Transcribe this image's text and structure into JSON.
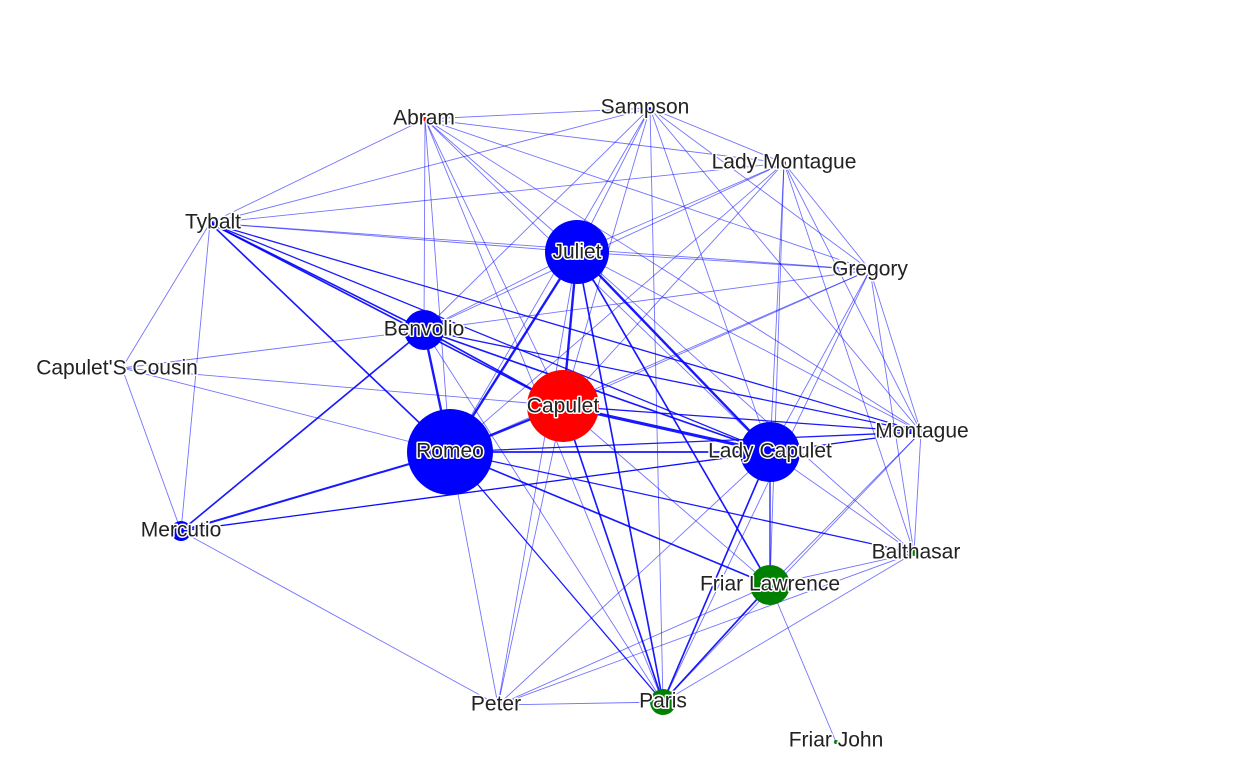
{
  "graph": {
    "colors": {
      "edge": "#0000ff",
      "blue": "#0000ff",
      "red": "#ff0000",
      "green": "#008000",
      "lightgreen": "#b8ddb8"
    },
    "nodes": [
      {
        "id": "abram",
        "label": "Abram",
        "color": "red",
        "size": 2
      },
      {
        "id": "sampson",
        "label": "Sampson",
        "color": "blue",
        "size": 1
      },
      {
        "id": "lady-montague",
        "label": "Lady Montague",
        "color": "red",
        "size": 2
      },
      {
        "id": "tybalt",
        "label": "Tybalt",
        "color": "blue",
        "size": 3
      },
      {
        "id": "juliet",
        "label": "Juliet",
        "color": "blue",
        "size": 32
      },
      {
        "id": "gregory",
        "label": "Gregory",
        "color": "blue",
        "size": 1
      },
      {
        "id": "benvolio",
        "label": "Benvolio",
        "color": "blue",
        "size": 20
      },
      {
        "id": "capulets-cousin",
        "label": "Capulet'S Cousin",
        "color": "blue",
        "size": 2
      },
      {
        "id": "capulet",
        "label": "Capulet",
        "color": "red",
        "size": 36
      },
      {
        "id": "romeo",
        "label": "Romeo",
        "color": "blue",
        "size": 43
      },
      {
        "id": "montague",
        "label": "Montague",
        "color": "lightgreen",
        "size": 6
      },
      {
        "id": "lady-capulet",
        "label": "Lady Capulet",
        "color": "blue",
        "size": 30
      },
      {
        "id": "mercutio",
        "label": "Mercutio",
        "color": "blue",
        "size": 10
      },
      {
        "id": "balthasar",
        "label": "Balthasar",
        "color": "green",
        "size": 3
      },
      {
        "id": "friar-lawrence",
        "label": "Friar Lawrence",
        "color": "green",
        "size": 20
      },
      {
        "id": "peter",
        "label": "Peter",
        "color": "blue",
        "size": 1
      },
      {
        "id": "paris",
        "label": "Paris",
        "color": "green",
        "size": 13
      },
      {
        "id": "friar-john",
        "label": "Friar John",
        "color": "green",
        "size": 2
      }
    ],
    "edges": [
      {
        "source": "capulet",
        "target": "lady-capulet",
        "weight": 4
      },
      {
        "source": "capulet",
        "target": "romeo",
        "weight": 3
      },
      {
        "source": "capulet",
        "target": "juliet",
        "weight": 3
      },
      {
        "source": "capulet",
        "target": "benvolio",
        "weight": 2
      },
      {
        "source": "capulet",
        "target": "tybalt",
        "weight": 2
      },
      {
        "source": "capulet",
        "target": "paris",
        "weight": 2
      },
      {
        "source": "capulet",
        "target": "montague",
        "weight": 1.5
      },
      {
        "source": "capulet",
        "target": "sampson",
        "weight": 1
      },
      {
        "source": "capulet",
        "target": "gregory",
        "weight": 1
      },
      {
        "source": "capulet",
        "target": "lady-montague",
        "weight": 1
      },
      {
        "source": "capulet",
        "target": "peter",
        "weight": 1
      },
      {
        "source": "capulet",
        "target": "abram",
        "weight": 1
      },
      {
        "source": "capulet",
        "target": "capulets-cousin",
        "weight": 1
      },
      {
        "source": "capulet",
        "target": "friar-lawrence",
        "weight": 1
      },
      {
        "source": "romeo",
        "target": "juliet",
        "weight": 3
      },
      {
        "source": "romeo",
        "target": "benvolio",
        "weight": 3
      },
      {
        "source": "romeo",
        "target": "mercutio",
        "weight": 2.5
      },
      {
        "source": "romeo",
        "target": "tybalt",
        "weight": 2
      },
      {
        "source": "romeo",
        "target": "lady-capulet",
        "weight": 2
      },
      {
        "source": "romeo",
        "target": "friar-lawrence",
        "weight": 2
      },
      {
        "source": "romeo",
        "target": "paris",
        "weight": 1.5
      },
      {
        "source": "romeo",
        "target": "balthasar",
        "weight": 1.5
      },
      {
        "source": "romeo",
        "target": "montague",
        "weight": 1.5
      },
      {
        "source": "romeo",
        "target": "peter",
        "weight": 1
      },
      {
        "source": "romeo",
        "target": "abram",
        "weight": 1
      },
      {
        "source": "romeo",
        "target": "sampson",
        "weight": 1
      },
      {
        "source": "romeo",
        "target": "gregory",
        "weight": 1
      },
      {
        "source": "romeo",
        "target": "capulets-cousin",
        "weight": 1
      },
      {
        "source": "romeo",
        "target": "lady-montague",
        "weight": 1
      },
      {
        "source": "juliet",
        "target": "lady-capulet",
        "weight": 3
      },
      {
        "source": "juliet",
        "target": "paris",
        "weight": 2
      },
      {
        "source": "juliet",
        "target": "friar-lawrence",
        "weight": 2
      },
      {
        "source": "juliet",
        "target": "benvolio",
        "weight": 1
      },
      {
        "source": "juliet",
        "target": "tybalt",
        "weight": 1
      },
      {
        "source": "juliet",
        "target": "sampson",
        "weight": 1
      },
      {
        "source": "juliet",
        "target": "gregory",
        "weight": 1
      },
      {
        "source": "juliet",
        "target": "peter",
        "weight": 1
      },
      {
        "source": "juliet",
        "target": "montague",
        "weight": 1
      },
      {
        "source": "juliet",
        "target": "abram",
        "weight": 1
      },
      {
        "source": "juliet",
        "target": "lady-montague",
        "weight": 1
      },
      {
        "source": "juliet",
        "target": "balthasar",
        "weight": 1
      },
      {
        "source": "lady-capulet",
        "target": "benvolio",
        "weight": 2
      },
      {
        "source": "lady-capulet",
        "target": "tybalt",
        "weight": 1.5
      },
      {
        "source": "lady-capulet",
        "target": "montague",
        "weight": 1.5
      },
      {
        "source": "lady-capulet",
        "target": "paris",
        "weight": 2
      },
      {
        "source": "lady-capulet",
        "target": "friar-lawrence",
        "weight": 1.5
      },
      {
        "source": "lady-capulet",
        "target": "mercutio",
        "weight": 1.5
      },
      {
        "source": "lady-capulet",
        "target": "sampson",
        "weight": 1
      },
      {
        "source": "lady-capulet",
        "target": "lady-montague",
        "weight": 1
      },
      {
        "source": "lady-capulet",
        "target": "abram",
        "weight": 1
      },
      {
        "source": "lady-capulet",
        "target": "gregory",
        "weight": 1
      },
      {
        "source": "lady-capulet",
        "target": "balthasar",
        "weight": 1
      },
      {
        "source": "lady-capulet",
        "target": "peter",
        "weight": 1
      },
      {
        "source": "benvolio",
        "target": "tybalt",
        "weight": 2
      },
      {
        "source": "benvolio",
        "target": "mercutio",
        "weight": 2
      },
      {
        "source": "benvolio",
        "target": "montague",
        "weight": 1.5
      },
      {
        "source": "benvolio",
        "target": "abram",
        "weight": 1
      },
      {
        "source": "benvolio",
        "target": "sampson",
        "weight": 1
      },
      {
        "source": "benvolio",
        "target": "gregory",
        "weight": 1
      },
      {
        "source": "benvolio",
        "target": "lady-montague",
        "weight": 1
      },
      {
        "source": "benvolio",
        "target": "capulets-cousin",
        "weight": 1
      },
      {
        "source": "benvolio",
        "target": "paris",
        "weight": 1
      },
      {
        "source": "tybalt",
        "target": "montague",
        "weight": 1.5
      },
      {
        "source": "tybalt",
        "target": "abram",
        "weight": 1
      },
      {
        "source": "tybalt",
        "target": "sampson",
        "weight": 1
      },
      {
        "source": "tybalt",
        "target": "lady-montague",
        "weight": 1
      },
      {
        "source": "tybalt",
        "target": "gregory",
        "weight": 1
      },
      {
        "source": "tybalt",
        "target": "capulets-cousin",
        "weight": 1
      },
      {
        "source": "tybalt",
        "target": "mercutio",
        "weight": 1
      },
      {
        "source": "friar-lawrence",
        "target": "paris",
        "weight": 2
      },
      {
        "source": "friar-lawrence",
        "target": "montague",
        "weight": 1
      },
      {
        "source": "friar-lawrence",
        "target": "balthasar",
        "weight": 1
      },
      {
        "source": "friar-lawrence",
        "target": "friar-john",
        "weight": 1
      },
      {
        "source": "friar-lawrence",
        "target": "peter",
        "weight": 1
      },
      {
        "source": "friar-lawrence",
        "target": "lady-montague",
        "weight": 1
      },
      {
        "source": "paris",
        "target": "montague",
        "weight": 1
      },
      {
        "source": "paris",
        "target": "peter",
        "weight": 1
      },
      {
        "source": "paris",
        "target": "balthasar",
        "weight": 1
      },
      {
        "source": "paris",
        "target": "sampson",
        "weight": 1
      },
      {
        "source": "paris",
        "target": "gregory",
        "weight": 1
      },
      {
        "source": "paris",
        "target": "abram",
        "weight": 1
      },
      {
        "source": "montague",
        "target": "abram",
        "weight": 1
      },
      {
        "source": "montague",
        "target": "sampson",
        "weight": 1
      },
      {
        "source": "montague",
        "target": "lady-montague",
        "weight": 1
      },
      {
        "source": "montague",
        "target": "gregory",
        "weight": 1
      },
      {
        "source": "montague",
        "target": "balthasar",
        "weight": 1
      },
      {
        "source": "abram",
        "target": "sampson",
        "weight": 1
      },
      {
        "source": "abram",
        "target": "gregory",
        "weight": 1
      },
      {
        "source": "abram",
        "target": "lady-montague",
        "weight": 1
      },
      {
        "source": "sampson",
        "target": "gregory",
        "weight": 1
      },
      {
        "source": "sampson",
        "target": "lady-montague",
        "weight": 1
      },
      {
        "source": "gregory",
        "target": "lady-montague",
        "weight": 1
      },
      {
        "source": "gregory",
        "target": "balthasar",
        "weight": 1
      },
      {
        "source": "lady-montague",
        "target": "balthasar",
        "weight": 1
      },
      {
        "source": "mercutio",
        "target": "capulets-cousin",
        "weight": 1
      },
      {
        "source": "mercutio",
        "target": "peter",
        "weight": 1
      },
      {
        "source": "mercutio",
        "target": "montague",
        "weight": 1
      },
      {
        "source": "balthasar",
        "target": "peter",
        "weight": 1
      }
    ]
  }
}
